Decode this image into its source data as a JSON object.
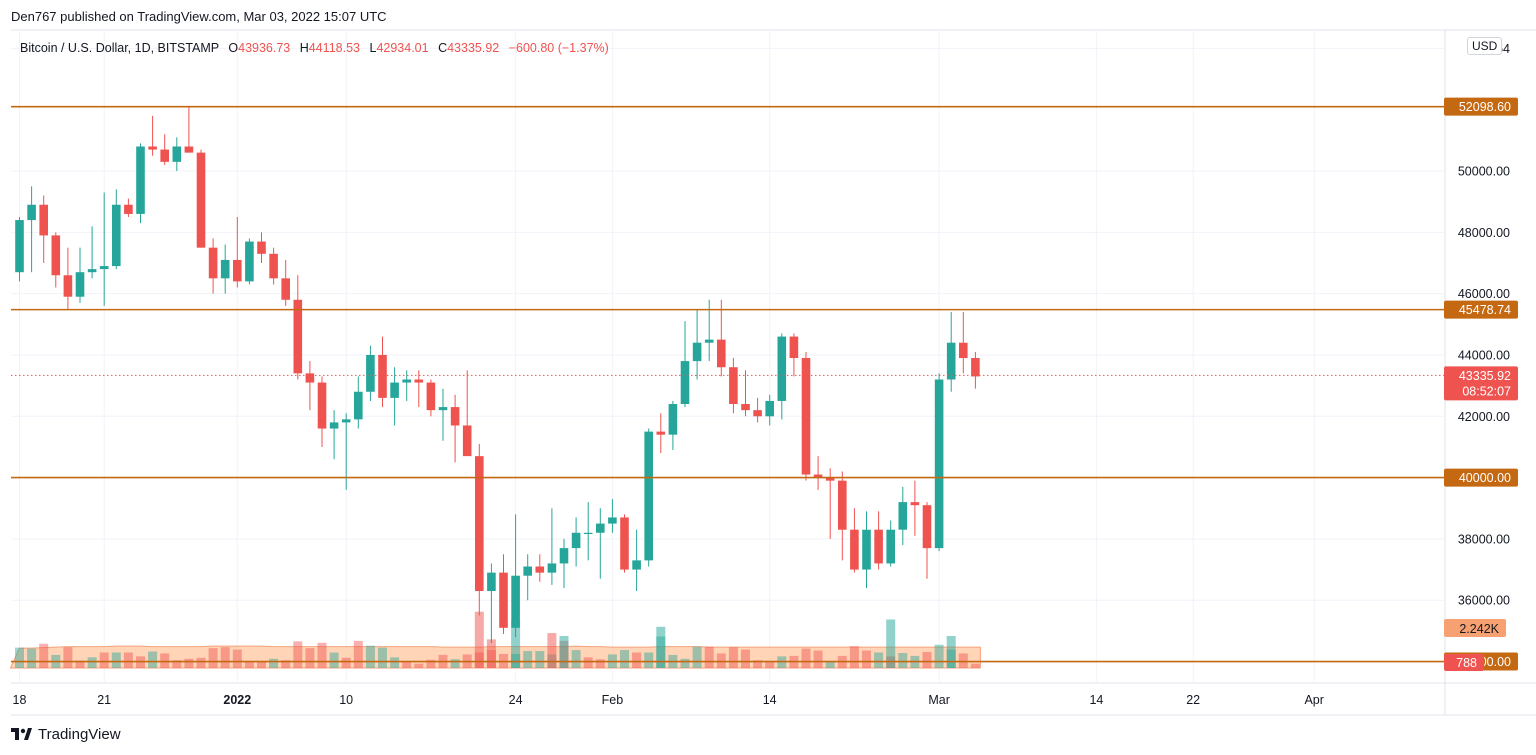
{
  "header": {
    "publisher": "Den767 published on TradingView.com, Mar 03, 2022 15:07 UTC"
  },
  "legend": {
    "symbol": "Bitcoin / U.S. Dollar, 1D, BITSTAMP",
    "o_label": "O",
    "o": "43936.73",
    "h_label": "H",
    "h": "44118.53",
    "l_label": "L",
    "l": "42934.01",
    "c_label": "C",
    "c": "43335.92",
    "change": "−600.80 (−1.37%)"
  },
  "currency": "USD",
  "footer": {
    "brand": "TradingView",
    "logo_icon": "tradingview-logo-icon"
  },
  "colors": {
    "up": "#26a69a",
    "down": "#ef5350",
    "level": "#c46811",
    "volume_ma": "#ffccaa",
    "grid": "#f0f3fa"
  },
  "chart_data": {
    "type": "candlestick",
    "ylim": [
      33300,
      54600
    ],
    "y_ticks": [
      {
        "value": 36000,
        "label": "36000.00"
      },
      {
        "value": 38000,
        "label": "38000.00"
      },
      {
        "value": 42000,
        "label": "42000.00"
      },
      {
        "value": 44000,
        "label": "44000.00"
      },
      {
        "value": 46000,
        "label": "46000.00"
      },
      {
        "value": 48000,
        "label": "48000.00"
      },
      {
        "value": 50000,
        "label": "50000.00"
      },
      {
        "value": 54000,
        "label": "54"
      },
      {
        "value": 32000,
        "label": ".00"
      }
    ],
    "x_ticks": [
      {
        "index": 0,
        "label": "18",
        "bold": false
      },
      {
        "index": 7,
        "label": "21",
        "bold": false
      },
      {
        "index": 18,
        "label": "2022",
        "bold": true
      },
      {
        "index": 27,
        "label": "10",
        "bold": false
      },
      {
        "index": 41,
        "label": "24",
        "bold": false
      },
      {
        "index": 49,
        "label": "Feb",
        "bold": false
      },
      {
        "index": 62,
        "label": "14",
        "bold": false
      },
      {
        "index": 76,
        "label": "Mar",
        "bold": false
      },
      {
        "index": 89,
        "label": "14",
        "bold": false
      },
      {
        "index": 97,
        "label": "22",
        "bold": false
      },
      {
        "index": 107,
        "label": "Apr",
        "bold": false
      }
    ],
    "levels": [
      {
        "value": 52098.6,
        "label": "52098.60"
      },
      {
        "value": 45478.74,
        "label": "45478.74"
      },
      {
        "value": 40000.0,
        "label": "40000.00"
      },
      {
        "value": 34000.0,
        "label": "34000.00"
      }
    ],
    "last_price": {
      "value": 43335.92,
      "label": "43335.92",
      "countdown": "08:52:07"
    },
    "volume_ma_label": "2.242K",
    "volume_last_label": "788",
    "candles": [
      [
        46700,
        48500,
        46400,
        48400
      ],
      [
        48400,
        49500,
        46700,
        48900
      ],
      [
        48900,
        49200,
        47000,
        47900
      ],
      [
        47900,
        48000,
        46200,
        46600
      ],
      [
        46600,
        47500,
        45500,
        45900
      ],
      [
        45900,
        47500,
        45700,
        46700
      ],
      [
        46700,
        48200,
        46500,
        46800
      ],
      [
        46800,
        49300,
        45600,
        46900
      ],
      [
        46900,
        49400,
        46800,
        48900
      ],
      [
        48900,
        49100,
        48500,
        48600
      ],
      [
        48600,
        50900,
        48300,
        50800
      ],
      [
        50800,
        51800,
        50500,
        50700
      ],
      [
        50700,
        51200,
        50200,
        50300
      ],
      [
        50300,
        51100,
        50000,
        50800
      ],
      [
        50800,
        52100,
        50600,
        50600
      ],
      [
        50600,
        50700,
        47500,
        47500
      ],
      [
        47500,
        47800,
        46000,
        46500
      ],
      [
        46500,
        47600,
        46000,
        47100
      ],
      [
        47100,
        48500,
        46200,
        46400
      ],
      [
        46400,
        47800,
        46300,
        47700
      ],
      [
        47700,
        48000,
        47000,
        47300
      ],
      [
        47300,
        47500,
        46300,
        46500
      ],
      [
        46500,
        47100,
        45600,
        45800
      ],
      [
        45800,
        46600,
        43200,
        43400
      ],
      [
        43400,
        43800,
        42200,
        43100
      ],
      [
        43100,
        43300,
        41000,
        41600
      ],
      [
        41600,
        42200,
        40600,
        41800
      ],
      [
        41800,
        42100,
        39600,
        41900
      ],
      [
        41900,
        43300,
        41600,
        42800
      ],
      [
        42800,
        44300,
        42500,
        44000
      ],
      [
        44000,
        44600,
        42300,
        42600
      ],
      [
        42600,
        43600,
        41700,
        43100
      ],
      [
        43100,
        43500,
        42500,
        43200
      ],
      [
        43200,
        43500,
        42300,
        43100
      ],
      [
        43100,
        43200,
        42000,
        42200
      ],
      [
        42200,
        42900,
        41200,
        42300
      ],
      [
        42300,
        42700,
        40500,
        41700
      ],
      [
        41700,
        43500,
        40800,
        40700
      ],
      [
        40700,
        41100,
        35500,
        36300
      ],
      [
        36300,
        37200,
        34600,
        36900
      ],
      [
        36900,
        37500,
        34900,
        35100
      ],
      [
        35100,
        38800,
        34800,
        36800
      ],
      [
        36800,
        37500,
        36000,
        37100
      ],
      [
        37100,
        37500,
        36600,
        36900
      ],
      [
        36900,
        39000,
        36500,
        37200
      ],
      [
        37200,
        38000,
        36400,
        37700
      ],
      [
        37700,
        38700,
        37100,
        38200
      ],
      [
        38200,
        39200,
        37300,
        38200
      ],
      [
        38200,
        39000,
        36700,
        38500
      ],
      [
        38500,
        39300,
        38200,
        38700
      ],
      [
        38700,
        38800,
        36900,
        37000
      ],
      [
        37000,
        38300,
        36300,
        37300
      ],
      [
        37300,
        41600,
        37100,
        41500
      ],
      [
        41500,
        42100,
        40800,
        41400
      ],
      [
        41400,
        42500,
        40900,
        42400
      ],
      [
        42400,
        45100,
        42300,
        43800
      ],
      [
        43800,
        45500,
        43200,
        44400
      ],
      [
        44400,
        45800,
        43800,
        44500
      ],
      [
        44500,
        45800,
        43300,
        43600
      ],
      [
        43600,
        43900,
        42100,
        42400
      ],
      [
        42400,
        43500,
        42000,
        42200
      ],
      [
        42200,
        42600,
        41800,
        42000
      ],
      [
        42000,
        42700,
        41700,
        42500
      ],
      [
        42500,
        44700,
        41900,
        44600
      ],
      [
        44600,
        44700,
        43300,
        43900
      ],
      [
        43900,
        44100,
        39900,
        40100
      ],
      [
        40100,
        40700,
        39600,
        40000
      ],
      [
        40000,
        40300,
        38000,
        39900
      ],
      [
        39900,
        40200,
        37300,
        38300
      ],
      [
        38300,
        39000,
        36900,
        37000
      ],
      [
        37000,
        38900,
        36400,
        38300
      ],
      [
        38300,
        38900,
        37000,
        37200
      ],
      [
        37200,
        38600,
        37100,
        38300
      ],
      [
        38300,
        39700,
        37800,
        39200
      ],
      [
        39200,
        39900,
        38100,
        39100
      ],
      [
        39100,
        39200,
        36700,
        37700
      ],
      [
        37700,
        43400,
        37600,
        43200
      ],
      [
        43200,
        45400,
        42800,
        44400
      ],
      [
        44400,
        45400,
        43400,
        43900
      ],
      [
        43900,
        44100,
        42900,
        43300
      ]
    ],
    "volumes": [
      [
        2.1,
        1
      ],
      [
        2.0,
        1
      ],
      [
        2.5,
        0
      ],
      [
        1.35,
        1
      ],
      [
        2.15,
        0
      ],
      [
        0.75,
        0
      ],
      [
        1.1,
        1
      ],
      [
        1.6,
        0
      ],
      [
        1.6,
        1
      ],
      [
        1.6,
        0
      ],
      [
        1.2,
        0
      ],
      [
        1.7,
        1
      ],
      [
        1.5,
        0
      ],
      [
        0.8,
        0
      ],
      [
        0.95,
        0
      ],
      [
        1.05,
        0
      ],
      [
        2.05,
        0
      ],
      [
        2.15,
        0
      ],
      [
        1.9,
        0
      ],
      [
        0.65,
        0
      ],
      [
        0.65,
        0
      ],
      [
        0.95,
        1
      ],
      [
        0.8,
        0
      ],
      [
        2.75,
        0
      ],
      [
        2.05,
        0
      ],
      [
        2.6,
        0
      ],
      [
        1.6,
        1
      ],
      [
        1.05,
        0
      ],
      [
        2.8,
        0
      ],
      [
        2.3,
        1
      ],
      [
        2.1,
        1
      ],
      [
        1.1,
        1
      ],
      [
        0.65,
        0
      ],
      [
        0.45,
        0
      ],
      [
        0.85,
        0
      ],
      [
        1.35,
        0
      ],
      [
        0.9,
        1
      ],
      [
        1.4,
        0
      ],
      [
        1.6,
        0
      ],
      [
        1.85,
        0
      ],
      [
        1.45,
        0
      ],
      [
        1.45,
        1
      ],
      [
        1.75,
        1
      ],
      [
        1.75,
        1
      ],
      [
        1.4,
        1
      ],
      [
        2.8,
        0
      ],
      [
        1.85,
        1
      ],
      [
        1.1,
        0
      ],
      [
        0.9,
        0
      ],
      [
        1.4,
        1
      ],
      [
        1.85,
        1
      ],
      [
        1.6,
        0
      ],
      [
        1.6,
        1
      ],
      [
        3.25,
        1
      ],
      [
        1.35,
        1
      ],
      [
        0.95,
        1
      ],
      [
        2.2,
        1
      ],
      [
        2.2,
        0
      ],
      [
        1.5,
        0
      ],
      [
        2.15,
        0
      ],
      [
        1.9,
        0
      ],
      [
        0.8,
        0
      ],
      [
        0.6,
        0
      ],
      [
        1.2,
        1
      ],
      [
        1.25,
        0
      ],
      [
        2.0,
        0
      ],
      [
        1.8,
        0
      ],
      [
        0.65,
        1
      ],
      [
        1.25,
        0
      ],
      [
        2.25,
        0
      ],
      [
        1.8,
        0
      ],
      [
        1.6,
        1
      ],
      [
        1.2,
        0
      ],
      [
        1.55,
        1
      ],
      [
        1.25,
        1
      ],
      [
        1.65,
        0
      ],
      [
        2.4,
        1
      ],
      [
        1.9,
        1
      ],
      [
        1.5,
        0
      ],
      [
        0.45,
        0
      ]
    ],
    "volume_overlays": [
      {
        "index": 38,
        "value": 5.8,
        "up": false
      },
      {
        "index": 39,
        "value": 2.95,
        "up": false
      },
      {
        "index": 41,
        "value": 4.9,
        "up": true
      },
      {
        "index": 44,
        "value": 3.6,
        "up": false
      },
      {
        "index": 45,
        "value": 3.3,
        "up": true
      },
      {
        "index": 53,
        "value": 4.25,
        "up": true
      },
      {
        "index": 72,
        "value": 5.0,
        "up": true
      },
      {
        "index": 77,
        "value": 3.3,
        "up": true
      }
    ],
    "volume_ma": [
      2.05,
      2.05,
      2.1,
      2.15,
      2.2,
      2.2,
      2.2,
      2.2,
      2.25,
      2.25,
      2.25,
      2.2,
      2.2,
      2.2,
      2.2,
      2.2,
      2.25,
      2.25,
      2.25,
      2.25,
      2.25,
      2.2,
      2.2,
      2.2,
      2.2,
      2.2,
      2.2,
      2.2,
      2.2,
      2.2,
      2.2,
      2.2,
      2.2,
      2.2,
      2.2,
      2.15,
      2.15,
      2.15,
      2.15,
      2.2,
      2.2,
      2.2,
      2.2,
      2.2,
      2.2,
      2.2,
      2.25,
      2.2,
      2.2,
      2.15,
      2.15,
      2.15,
      2.15,
      2.2,
      2.2,
      2.2,
      2.2,
      2.15,
      2.15,
      2.15,
      2.15,
      2.15,
      2.15,
      2.15,
      2.15,
      2.15,
      2.15,
      2.15,
      2.15,
      2.15,
      2.15,
      2.15,
      2.15,
      2.15,
      2.15,
      2.15,
      2.15,
      2.15,
      2.15,
      2.15
    ]
  }
}
